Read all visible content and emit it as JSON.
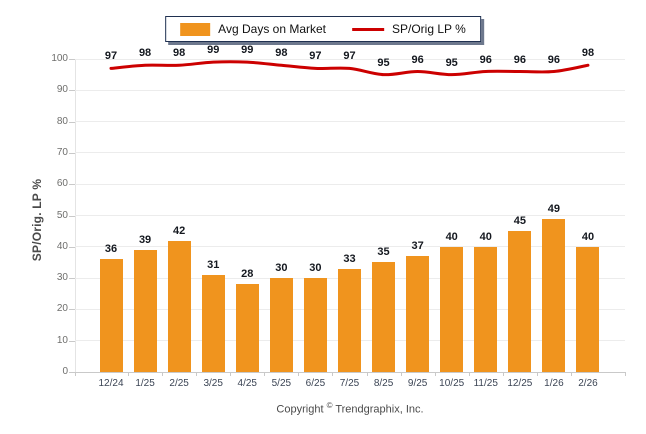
{
  "legend": {
    "items": [
      {
        "label": "Avg Days on Market",
        "swatch": "bar-swatch"
      },
      {
        "label": "SP/Orig LP %",
        "swatch": "line-swatch"
      }
    ]
  },
  "y_axis_title": "SP/Orig. LP %",
  "footer": {
    "prefix": "Copyright",
    "symbol": "©",
    "suffix": "Trendgraphix, Inc."
  },
  "colors": {
    "bar": "#F0941E",
    "line": "#CC0000",
    "legend_border": "#1F3050",
    "grid": "#ECECEC",
    "axis": "#C9C9C9",
    "data_label": "#14181F",
    "x_tick_label": "#3B4454",
    "y_tick_label": "#6E6E6C"
  },
  "chart_data": {
    "type": "bar",
    "title": "",
    "categories": [
      "12/24",
      "1/25",
      "2/25",
      "3/25",
      "4/25",
      "5/25",
      "6/25",
      "7/25",
      "8/25",
      "9/25",
      "10/25",
      "11/25",
      "12/25",
      "1/26",
      "2/26"
    ],
    "series": [
      {
        "name": "Avg Days on Market",
        "type": "bar",
        "color": "#F0941E",
        "values": [
          36,
          39,
          42,
          31,
          28,
          30,
          30,
          33,
          35,
          37,
          40,
          40,
          45,
          49,
          40
        ]
      },
      {
        "name": "SP/Orig LP %",
        "type": "line",
        "color": "#CC0000",
        "values": [
          97,
          98,
          98,
          99,
          99,
          98,
          97,
          97,
          95,
          96,
          95,
          96,
          96,
          96,
          98
        ]
      }
    ],
    "xlabel": "",
    "ylabel": "SP/Orig. LP %",
    "ylim": [
      0,
      100
    ],
    "yticks": [
      0,
      10,
      20,
      30,
      40,
      50,
      60,
      70,
      80,
      90,
      100
    ],
    "grid": true,
    "legend_position": "top",
    "data_labels": true
  }
}
